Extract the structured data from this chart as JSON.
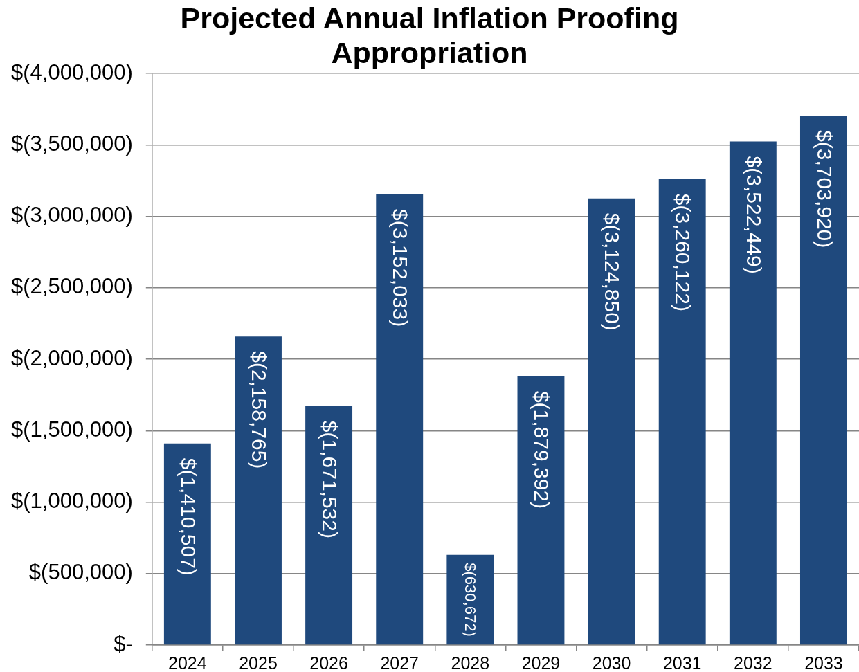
{
  "chart_data": {
    "type": "bar",
    "title": "Projected Annual Inflation Proofing Appropriation",
    "categories": [
      "2024",
      "2025",
      "2026",
      "2027",
      "2028",
      "2029",
      "2030",
      "2031",
      "2032",
      "2033"
    ],
    "values": [
      -1410507,
      -2158765,
      -1671532,
      -3152033,
      -630672,
      -1879392,
      -3124850,
      -3260122,
      -3522449,
      -3703920
    ],
    "color": "#1f497d",
    "value_labels": [
      "$(1,410,507)",
      "$(2,158,765)",
      "$(1,671,532)",
      "$(3,152,033)",
      "$(630,672)",
      "$(1,879,392)",
      "$(3,124,850)",
      "$(3,260,122)",
      "$(3,522,449)",
      "$(3,703,920)"
    ],
    "ylim": [
      0,
      -4000000
    ],
    "yticks": [
      {
        "value": 0,
        "label": "$-"
      },
      {
        "value": -500000,
        "label": "$(500,000)"
      },
      {
        "value": -1000000,
        "label": "$(1,000,000)"
      },
      {
        "value": -1500000,
        "label": "$(1,500,000)"
      },
      {
        "value": -2000000,
        "label": "$(2,000,000)"
      },
      {
        "value": -2500000,
        "label": "$(2,500,000)"
      },
      {
        "value": -3000000,
        "label": "$(3,000,000)"
      },
      {
        "value": -3500000,
        "label": "$(3,500,000)"
      },
      {
        "value": -4000000,
        "label": "$(4,000,000)"
      }
    ],
    "grid": "y"
  }
}
